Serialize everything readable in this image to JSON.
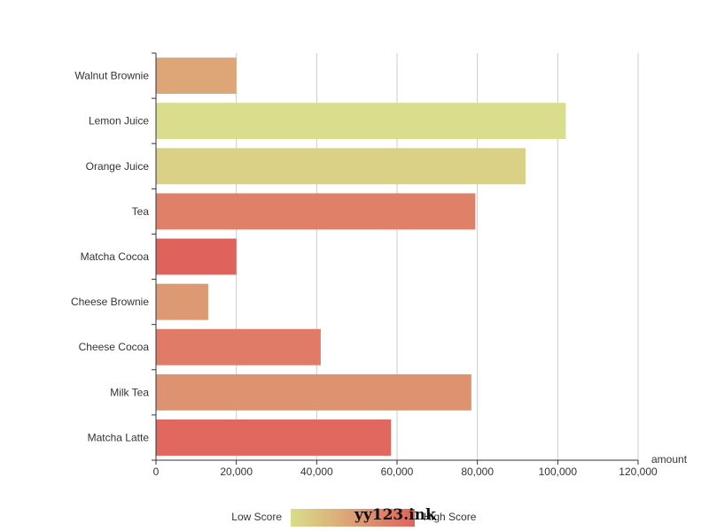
{
  "chart_data": {
    "type": "bar",
    "orientation": "horizontal",
    "categories": [
      "Walnut Brownie",
      "Lemon Juice",
      "Orange Juice",
      "Tea",
      "Matcha Cocoa",
      "Cheese Brownie",
      "Cheese Cocoa",
      "Milk Tea",
      "Matcha Latte"
    ],
    "values": [
      20000,
      102000,
      92000,
      79500,
      20000,
      13000,
      41000,
      78500,
      58500
    ],
    "scores": [
      0.45,
      0.0,
      0.1,
      0.75,
      1.0,
      0.55,
      0.8,
      0.6,
      0.95
    ],
    "xlabel": "amount",
    "xlim": [
      0,
      120000
    ],
    "xticks": [
      0,
      20000,
      40000,
      60000,
      80000,
      100000,
      120000
    ],
    "xtick_labels": [
      "0",
      "20,000",
      "40,000",
      "60,000",
      "80,000",
      "100,000",
      "120,000"
    ],
    "grid": true,
    "visual_map": {
      "low_label": "Low Score",
      "high_label": "High Score",
      "low_color": "#d9dd8c",
      "high_color": "#e0625c"
    }
  },
  "watermark": "yy123.ink"
}
